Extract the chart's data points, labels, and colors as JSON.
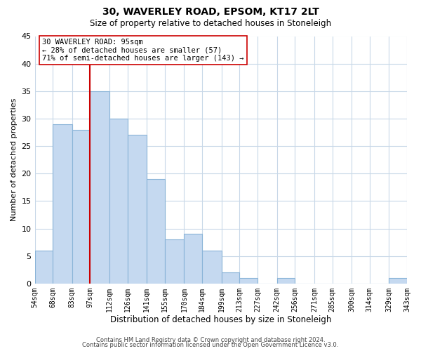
{
  "title": "30, WAVERLEY ROAD, EPSOM, KT17 2LT",
  "subtitle": "Size of property relative to detached houses in Stoneleigh",
  "xlabel": "Distribution of detached houses by size in Stoneleigh",
  "ylabel": "Number of detached properties",
  "bar_edges": [
    54,
    68,
    83,
    97,
    112,
    126,
    141,
    155,
    170,
    184,
    199,
    213,
    227,
    242,
    256,
    271,
    285,
    300,
    314,
    329,
    343
  ],
  "bar_heights": [
    6,
    29,
    28,
    35,
    30,
    27,
    19,
    8,
    9,
    6,
    2,
    1,
    0,
    1,
    0,
    0,
    0,
    0,
    0,
    1
  ],
  "bar_color": "#c5d9f0",
  "bar_edgecolor": "#8ab4d8",
  "vline_x": 97,
  "vline_color": "#cc0000",
  "ylim": [
    0,
    45
  ],
  "yticks": [
    0,
    5,
    10,
    15,
    20,
    25,
    30,
    35,
    40,
    45
  ],
  "annotation_line1": "30 WAVERLEY ROAD: 95sqm",
  "annotation_line2": "← 28% of detached houses are smaller (57)",
  "annotation_line3": "71% of semi-detached houses are larger (143) →",
  "footer1": "Contains HM Land Registry data © Crown copyright and database right 2024.",
  "footer2": "Contains public sector information licensed under the Open Government Licence v3.0.",
  "tick_labels": [
    "54sqm",
    "68sqm",
    "83sqm",
    "97sqm",
    "112sqm",
    "126sqm",
    "141sqm",
    "155sqm",
    "170sqm",
    "184sqm",
    "199sqm",
    "213sqm",
    "227sqm",
    "242sqm",
    "256sqm",
    "271sqm",
    "285sqm",
    "300sqm",
    "314sqm",
    "329sqm",
    "343sqm"
  ],
  "background_color": "#ffffff",
  "grid_color": "#c8d8e8"
}
